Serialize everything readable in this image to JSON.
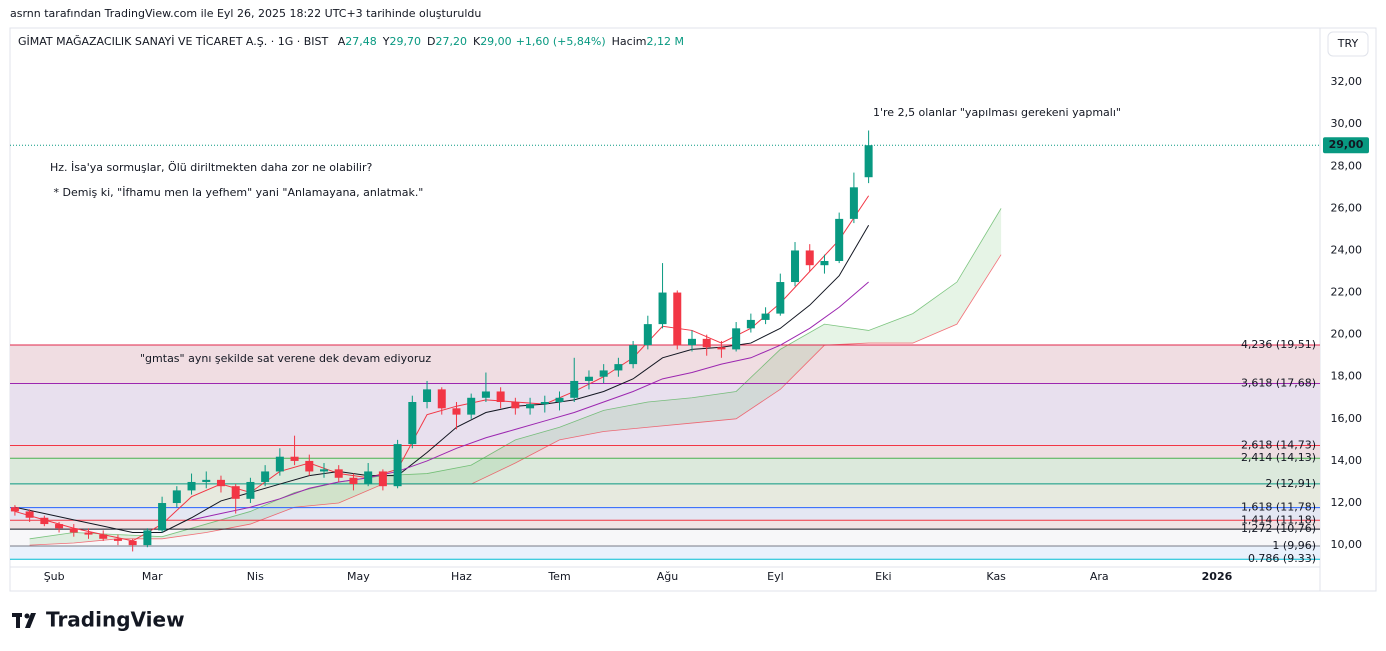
{
  "header": {
    "caption": "asrnn tarafından TradingView.com ile Eyl 26, 2025 18:22 UTC+3 tarihinde oluşturuldu",
    "symbol": "GİMAT MAĞAZACILIK SANAYİ VE TİCARET A.Ş. · 1G · BIST",
    "ohlc": [
      {
        "key": "A",
        "text": "27,48"
      },
      {
        "key": "Y",
        "text": "29,70"
      },
      {
        "key": "D",
        "text": "27,20"
      },
      {
        "key": "K",
        "text": "29,00"
      }
    ],
    "change": "+1,60 (+5,84%)",
    "volume_key": "Hacim",
    "volume": "2,12 M",
    "currency": "TRY",
    "brand": "TradingView"
  },
  "chart_data": {
    "type": "candlestick",
    "up_color": "#089981",
    "down_color": "#f23645",
    "x": [
      1,
      4,
      7,
      10,
      13,
      16,
      19,
      22,
      25,
      28,
      31,
      34,
      37,
      40,
      43,
      46,
      49,
      52,
      55,
      58,
      61,
      64,
      67,
      70,
      73,
      76,
      79,
      82,
      85,
      88,
      91,
      94,
      97,
      100,
      103,
      106,
      109,
      112,
      115,
      118,
      121,
      124,
      127,
      130,
      133,
      136,
      139,
      142,
      145,
      148,
      151,
      154,
      157,
      160,
      163,
      166,
      169,
      172,
      175
    ],
    "open": [
      11.8,
      11.6,
      11.3,
      11.0,
      10.8,
      10.6,
      10.5,
      10.3,
      10.2,
      10.0,
      10.7,
      12.0,
      12.6,
      13.0,
      13.1,
      12.8,
      12.2,
      13.0,
      13.5,
      14.2,
      14.0,
      13.5,
      13.6,
      13.2,
      12.9,
      13.5,
      12.8,
      14.8,
      16.8,
      17.4,
      16.5,
      16.2,
      17.0,
      17.3,
      16.8,
      16.5,
      16.7,
      16.8,
      17.0,
      17.8,
      18.0,
      18.3,
      18.6,
      19.5,
      20.5,
      22.0,
      19.5,
      19.8,
      19.4,
      19.3,
      20.3,
      20.7,
      21.0,
      22.5,
      24.0,
      23.3,
      23.5,
      25.5,
      27.48
    ],
    "high": [
      11.9,
      11.7,
      11.4,
      11.1,
      11.0,
      10.8,
      10.7,
      10.5,
      10.3,
      10.8,
      12.3,
      12.8,
      13.4,
      13.5,
      13.3,
      12.9,
      13.2,
      13.8,
      14.6,
      15.2,
      14.3,
      13.9,
      13.8,
      13.4,
      13.9,
      13.6,
      15.0,
      17.1,
      17.8,
      17.5,
      16.8,
      17.2,
      18.2,
      17.5,
      17.0,
      17.0,
      17.1,
      17.3,
      18.9,
      18.3,
      18.6,
      18.9,
      19.7,
      20.9,
      23.4,
      22.1,
      20.2,
      20.0,
      19.7,
      20.6,
      21.0,
      21.3,
      22.9,
      24.4,
      24.3,
      23.8,
      25.8,
      27.7,
      29.7
    ],
    "low": [
      11.4,
      11.1,
      10.9,
      10.6,
      10.4,
      10.3,
      10.2,
      10.0,
      9.7,
      9.9,
      10.6,
      11.8,
      12.4,
      12.7,
      12.5,
      11.5,
      12.0,
      12.8,
      13.3,
      13.8,
      13.3,
      13.2,
      13.0,
      12.6,
      12.8,
      12.6,
      12.7,
      14.6,
      16.5,
      16.2,
      15.5,
      16.0,
      16.8,
      16.5,
      16.2,
      16.2,
      16.3,
      16.4,
      16.8,
      17.4,
      17.7,
      18.0,
      18.4,
      19.3,
      20.3,
      19.3,
      19.2,
      19.0,
      18.9,
      19.2,
      20.1,
      20.5,
      20.9,
      22.3,
      23.0,
      22.9,
      23.4,
      25.3,
      27.2
    ],
    "close": [
      11.6,
      11.3,
      11.0,
      10.8,
      10.6,
      10.5,
      10.3,
      10.2,
      10.0,
      10.7,
      12.0,
      12.6,
      13.0,
      13.1,
      12.8,
      12.2,
      13.0,
      13.5,
      14.2,
      14.0,
      13.5,
      13.6,
      13.2,
      12.9,
      13.5,
      12.8,
      14.8,
      16.8,
      17.4,
      16.5,
      16.2,
      17.0,
      17.3,
      16.8,
      16.5,
      16.7,
      16.8,
      17.0,
      17.8,
      18.0,
      18.3,
      18.6,
      19.5,
      20.5,
      22.0,
      19.5,
      19.8,
      19.4,
      19.3,
      20.3,
      20.7,
      21.0,
      22.5,
      24.0,
      23.3,
      23.5,
      25.5,
      27.0,
      29.0
    ],
    "last_close_label": "29,00",
    "moving_averages": [
      {
        "color": "#f23645",
        "x": [
          1,
          7,
          13,
          19,
          25,
          31,
          37,
          43,
          49,
          55,
          61,
          67,
          73,
          79,
          85,
          91,
          97,
          103,
          109,
          115,
          121,
          127,
          133,
          139,
          145,
          151,
          157,
          163,
          169,
          175
        ],
        "values": [
          11.6,
          11.2,
          10.8,
          10.5,
          10.2,
          11.0,
          12.3,
          12.9,
          12.5,
          13.5,
          13.9,
          13.4,
          13.2,
          13.6,
          16.2,
          16.6,
          16.9,
          16.8,
          16.7,
          17.3,
          18.0,
          18.9,
          20.4,
          20.2,
          19.6,
          20.3,
          21.5,
          23.0,
          24.5,
          26.6
        ]
      },
      {
        "color": "#131722",
        "x": [
          1,
          7,
          13,
          19,
          25,
          31,
          37,
          43,
          49,
          55,
          61,
          67,
          73,
          79,
          85,
          91,
          97,
          103,
          109,
          115,
          121,
          127,
          133,
          139,
          145,
          151,
          157,
          163,
          169,
          175
        ],
        "values": [
          11.8,
          11.5,
          11.2,
          10.9,
          10.6,
          10.6,
          11.3,
          12.1,
          12.5,
          12.9,
          13.3,
          13.5,
          13.3,
          13.3,
          14.4,
          15.6,
          16.3,
          16.6,
          16.7,
          16.9,
          17.3,
          17.9,
          18.9,
          19.3,
          19.4,
          19.6,
          20.3,
          21.4,
          22.8,
          25.2
        ]
      },
      {
        "color": "#9c27b0",
        "x": [
          1,
          7,
          13,
          19,
          25,
          31,
          37,
          43,
          49,
          55,
          61,
          67,
          73,
          79,
          85,
          91,
          97,
          103,
          109,
          115,
          121,
          127,
          133,
          139,
          145,
          151,
          157,
          163,
          169,
          175
        ],
        "values": [
          null,
          null,
          null,
          null,
          null,
          null,
          11.2,
          11.5,
          11.8,
          12.2,
          12.7,
          13.0,
          13.2,
          13.5,
          14.0,
          14.6,
          15.1,
          15.5,
          15.9,
          16.3,
          16.8,
          17.3,
          17.9,
          18.2,
          18.6,
          18.9,
          19.5,
          20.3,
          21.3,
          22.5
        ]
      }
    ],
    "cloud": {
      "x": [
        4,
        13,
        22,
        31,
        40,
        49,
        58,
        67,
        76,
        85,
        94,
        103,
        112,
        121,
        130,
        139,
        148,
        157,
        166,
        175,
        184,
        193,
        202
      ],
      "span_a": [
        10.3,
        10.6,
        10.5,
        10.4,
        11.0,
        11.6,
        12.5,
        13.0,
        13.3,
        13.4,
        13.8,
        15.0,
        15.6,
        16.4,
        16.8,
        17.0,
        17.3,
        19.3,
        20.5,
        20.2,
        21.0,
        22.5,
        26.0
      ],
      "span_b": [
        10.0,
        10.1,
        10.3,
        10.3,
        10.6,
        11.0,
        11.8,
        12.0,
        12.9,
        12.9,
        12.9,
        13.9,
        15.0,
        15.4,
        15.6,
        15.8,
        16.0,
        17.4,
        19.5,
        19.6,
        19.6,
        20.5,
        23.8
      ],
      "color_a": "#4caf50",
      "color_b": "#f23645",
      "fill": "rgba(76,175,80,0.14)"
    },
    "fib_levels": [
      {
        "value": 19.51,
        "label": "4,236 (19,51)",
        "color": "#e0264a",
        "fill": "#f0dde2"
      },
      {
        "value": 17.68,
        "label": "3,618 (17,68)",
        "color": "#9c27b0",
        "fill": "#e8e0ee"
      },
      {
        "value": 14.73,
        "label": "2,618 (14,73)",
        "color": "#f23645",
        "fill": "#eedee2"
      },
      {
        "value": 14.13,
        "label": "2,414 (14,13)",
        "color": "#4caf50",
        "fill": "#dce9dc"
      },
      {
        "value": 12.91,
        "label": "2 (12,91)",
        "color": "#089981",
        "fill": "#e7eadf"
      },
      {
        "value": 11.78,
        "label": "1,618 (11,78)",
        "color": "#2962ff",
        "fill": "#e4e7f3"
      },
      {
        "value": 11.18,
        "label": "1,414 (11,18)",
        "color": "#f23645",
        "fill": "#f1e3e5"
      },
      {
        "value": 10.76,
        "label": "1,272 (10,76)",
        "color": "#131722",
        "fill": "#f7f7f9"
      },
      {
        "value": 9.96,
        "label": "1 (9,96)",
        "color": "#787b86",
        "fill": "#e9f1fc"
      },
      {
        "value": 9.33,
        "label": "0.786 (9.33)",
        "color": "#00bcd4"
      }
    ],
    "xlim": [
      0,
      267
    ],
    "xticks": [
      {
        "value": 9,
        "label": "Şub"
      },
      {
        "value": 29,
        "label": "Mar"
      },
      {
        "value": 50,
        "label": "Nis"
      },
      {
        "value": 71,
        "label": "May"
      },
      {
        "value": 92,
        "label": "Haz"
      },
      {
        "value": 112,
        "label": "Tem"
      },
      {
        "value": 134,
        "label": "Ağu"
      },
      {
        "value": 156,
        "label": "Eyl"
      },
      {
        "value": 178,
        "label": "Eki"
      },
      {
        "value": 201,
        "label": "Kas"
      },
      {
        "value": 222,
        "label": "Ara"
      },
      {
        "value": 246,
        "label": "2026"
      }
    ],
    "ylim": [
      8.96,
      34.57
    ],
    "yticks": [
      {
        "value": 10,
        "label": "10,00"
      },
      {
        "value": 12,
        "label": "12,00"
      },
      {
        "value": 14,
        "label": "14,00"
      },
      {
        "value": 16,
        "label": "16,00"
      },
      {
        "value": 18,
        "label": "18,00"
      },
      {
        "value": 20,
        "label": "20,00"
      },
      {
        "value": 22,
        "label": "22,00"
      },
      {
        "value": 24,
        "label": "24,00"
      },
      {
        "value": 26,
        "label": "26,00"
      },
      {
        "value": 28,
        "label": "28,00"
      },
      {
        "value": 30,
        "label": "30,00"
      },
      {
        "value": 32,
        "label": "32,00"
      }
    ],
    "annotations": [
      {
        "text": "1're 2,5 olanlar \"yapılması gerekeni yapmalı\"",
        "color": "#f57c00"
      },
      {
        "text": "Hz. İsa'ya sormuşlar, Ölü diriltmekten daha zor ne olabilir?",
        "color": "#131722"
      },
      {
        "text": " * Demiş ki, \"İfhamu men la yefhem\" yani \"Anlamayana, anlatmak.\"",
        "color": "#131722"
      },
      {
        "text": "\"gmtas\" aynı şekilde sat verene dek devam ediyoruz",
        "color": "#131722"
      }
    ]
  }
}
